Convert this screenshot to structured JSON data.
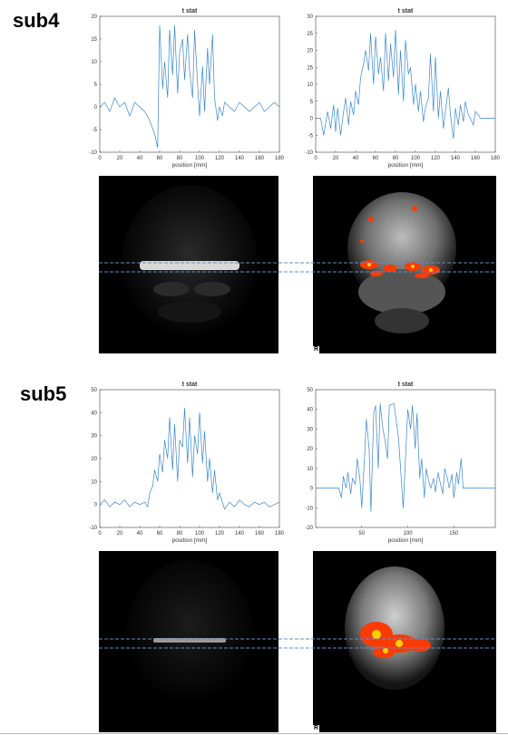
{
  "subjects": [
    {
      "label": "sub4"
    },
    {
      "label": "sub5"
    }
  ],
  "image_overlay": {
    "orientation_label": "R",
    "guide_line_color": "#5b8fd6"
  },
  "colors": {
    "line": "#3a86c7",
    "activation": "#ff3a00"
  },
  "chart_data": [
    {
      "type": "line",
      "title": "t stat",
      "xlabel": "position [mm]",
      "ylabel": "",
      "xlim": [
        0,
        180
      ],
      "ylim": [
        -10,
        20
      ],
      "xticks": [
        0,
        20,
        40,
        60,
        80,
        100,
        120,
        140,
        160,
        180
      ],
      "yticks": [
        -10,
        -5,
        0,
        5,
        10,
        15,
        20
      ],
      "grid": false,
      "series": [
        {
          "x": [
            0,
            5,
            10,
            15,
            20,
            25,
            30,
            35,
            40,
            45,
            50,
            55,
            58,
            60,
            63,
            65,
            68,
            70,
            73,
            75,
            78,
            80,
            83,
            85,
            88,
            90,
            93,
            95,
            98,
            100,
            103,
            105,
            108,
            110,
            113,
            115,
            118,
            120,
            123,
            125,
            130,
            135,
            140,
            145,
            150,
            155,
            160,
            165,
            170,
            175,
            180
          ],
          "y": [
            0,
            1,
            -1,
            2,
            0,
            1,
            -2,
            1,
            0,
            -1,
            -3,
            -6,
            -9,
            18,
            4,
            10,
            2,
            17,
            7,
            18,
            3,
            12,
            15,
            6,
            16,
            8,
            2,
            17,
            5,
            -2,
            9,
            -1,
            13,
            5,
            16,
            2,
            -3,
            0,
            -2,
            1,
            0,
            -1,
            1,
            0,
            -1,
            0,
            1,
            -1,
            0,
            1,
            0
          ]
        }
      ]
    },
    {
      "type": "line",
      "title": "t stat",
      "xlabel": "position [mm]",
      "ylabel": "",
      "xlim": [
        0,
        180
      ],
      "ylim": [
        -10,
        30
      ],
      "xticks": [
        0,
        20,
        40,
        60,
        80,
        100,
        120,
        140,
        160,
        180
      ],
      "yticks": [
        -10,
        -5,
        0,
        5,
        10,
        15,
        20,
        25,
        30
      ],
      "grid": false,
      "series": [
        {
          "x": [
            0,
            5,
            8,
            12,
            15,
            18,
            20,
            22,
            25,
            28,
            30,
            33,
            35,
            38,
            40,
            43,
            45,
            48,
            50,
            53,
            55,
            58,
            60,
            63,
            65,
            68,
            70,
            73,
            75,
            78,
            80,
            83,
            85,
            88,
            90,
            93,
            95,
            98,
            100,
            103,
            105,
            108,
            110,
            113,
            115,
            118,
            120,
            123,
            125,
            128,
            130,
            133,
            135,
            138,
            140,
            143,
            145,
            148,
            150,
            153,
            155,
            158,
            160,
            163,
            165,
            168,
            170,
            175,
            180
          ],
          "y": [
            0,
            0,
            -5,
            2,
            -3,
            4,
            -4,
            3,
            -5,
            2,
            6,
            -2,
            5,
            1,
            8,
            4,
            12,
            16,
            20,
            14,
            25,
            10,
            24,
            13,
            18,
            8,
            25,
            11,
            22,
            12,
            26,
            7,
            20,
            5,
            23,
            13,
            15,
            4,
            10,
            2,
            8,
            -1,
            3,
            6,
            19,
            2,
            18,
            0,
            8,
            -3,
            2,
            9,
            1,
            -6,
            3,
            -2,
            4,
            -1,
            5,
            1,
            0,
            -2,
            2,
            1,
            0,
            0,
            0,
            0,
            0
          ]
        }
      ]
    },
    {
      "type": "line",
      "title": "t stat",
      "xlabel": "position [mm]",
      "ylabel": "",
      "xlim": [
        0,
        180
      ],
      "ylim": [
        -10,
        50
      ],
      "xticks": [
        0,
        20,
        40,
        60,
        80,
        100,
        120,
        140,
        160,
        180
      ],
      "yticks": [
        -10,
        0,
        10,
        20,
        30,
        40,
        50
      ],
      "grid": false,
      "series": [
        {
          "x": [
            0,
            5,
            10,
            15,
            20,
            25,
            30,
            35,
            40,
            45,
            48,
            50,
            53,
            55,
            58,
            60,
            63,
            65,
            68,
            70,
            73,
            75,
            78,
            80,
            83,
            85,
            88,
            90,
            93,
            95,
            98,
            100,
            103,
            105,
            108,
            110,
            113,
            115,
            118,
            120,
            125,
            130,
            135,
            140,
            145,
            150,
            155,
            160,
            165,
            170,
            175,
            180
          ],
          "y": [
            0,
            2,
            -1,
            1,
            0,
            2,
            -1,
            1,
            0,
            1,
            -1,
            5,
            8,
            15,
            10,
            22,
            14,
            28,
            20,
            38,
            15,
            35,
            10,
            28,
            25,
            42,
            18,
            38,
            12,
            30,
            22,
            40,
            18,
            32,
            10,
            20,
            5,
            15,
            2,
            5,
            -2,
            1,
            -1,
            2,
            0,
            -1,
            1,
            0,
            1,
            -1,
            0,
            1
          ]
        }
      ]
    },
    {
      "type": "line",
      "title": "t stat",
      "xlabel": "position [mm]",
      "ylabel": "",
      "xlim": [
        0,
        195
      ],
      "ylim": [
        -20,
        50
      ],
      "xticks": [
        50,
        100,
        150
      ],
      "yticks": [
        -20,
        -10,
        0,
        10,
        20,
        30,
        40,
        50
      ],
      "grid": false,
      "series": [
        {
          "x": [
            0,
            10,
            20,
            25,
            28,
            30,
            33,
            35,
            38,
            40,
            43,
            45,
            48,
            50,
            53,
            55,
            58,
            60,
            63,
            65,
            68,
            70,
            73,
            75,
            78,
            80,
            85,
            90,
            95,
            100,
            103,
            105,
            108,
            110,
            113,
            115,
            118,
            120,
            123,
            125,
            128,
            130,
            133,
            135,
            138,
            140,
            143,
            145,
            148,
            150,
            153,
            155,
            158,
            160,
            165,
            170,
            180,
            190,
            195
          ],
          "y": [
            0,
            0,
            0,
            0,
            -5,
            6,
            0,
            8,
            -3,
            5,
            2,
            15,
            5,
            -10,
            15,
            35,
            20,
            -12,
            38,
            42,
            10,
            43,
            30,
            25,
            15,
            42,
            43,
            25,
            -10,
            40,
            30,
            42,
            20,
            38,
            5,
            15,
            -5,
            10,
            3,
            0,
            5,
            -2,
            8,
            3,
            -3,
            10,
            5,
            0,
            7,
            -5,
            8,
            2,
            15,
            0,
            0,
            0,
            0,
            0,
            0
          ]
        }
      ]
    }
  ]
}
